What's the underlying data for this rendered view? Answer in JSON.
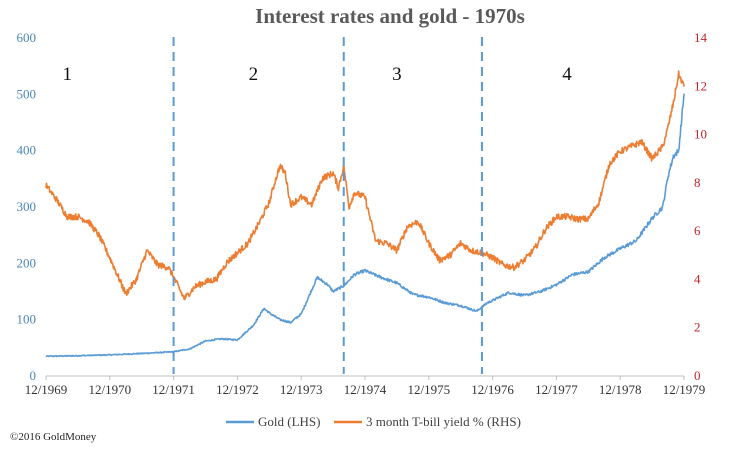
{
  "chart_data": {
    "type": "line",
    "title": "Interest rates and gold - 1970s",
    "x_tick_labels": [
      "12/1969",
      "12/1970",
      "12/1971",
      "12/1972",
      "12/1973",
      "12/1974",
      "12/1975",
      "12/1976",
      "12/1977",
      "12/1978",
      "12/1979"
    ],
    "x_range": [
      "12/1969",
      "12/1979"
    ],
    "y_left": {
      "ticks": [
        "0",
        "100",
        "200",
        "300",
        "400",
        "500",
        "600"
      ],
      "range": [
        0,
        600
      ],
      "color": "#4a86b8"
    },
    "y_right": {
      "ticks": [
        "0",
        "2",
        "4",
        "6",
        "8",
        "10",
        "12",
        "14"
      ],
      "range": [
        0,
        14
      ],
      "color": "#c0242b"
    },
    "grid": false,
    "legend_position": "bottom",
    "series": [
      {
        "name": "Gold (LHS)",
        "axis": "left",
        "color": "#5b9bd5",
        "points": [
          [
            "12/1969",
            35
          ],
          [
            "06/1970",
            36
          ],
          [
            "12/1970",
            37.5
          ],
          [
            "06/1971",
            40
          ],
          [
            "12/1971",
            43
          ],
          [
            "03/1972",
            48
          ],
          [
            "06/1972",
            62
          ],
          [
            "09/1972",
            66
          ],
          [
            "12/1972",
            64
          ],
          [
            "03/1973",
            90
          ],
          [
            "05/1973",
            120
          ],
          [
            "06/1973",
            112
          ],
          [
            "08/1973",
            100
          ],
          [
            "10/1973",
            95
          ],
          [
            "12/1973",
            110
          ],
          [
            "03/1974",
            175
          ],
          [
            "05/1974",
            162
          ],
          [
            "06/1974",
            150
          ],
          [
            "08/1974",
            160
          ],
          [
            "10/1974",
            180
          ],
          [
            "12/1974",
            187
          ],
          [
            "03/1975",
            175
          ],
          [
            "06/1975",
            165
          ],
          [
            "09/1975",
            145
          ],
          [
            "12/1975",
            140
          ],
          [
            "03/1976",
            130
          ],
          [
            "06/1976",
            125
          ],
          [
            "09/1976",
            115
          ],
          [
            "11/1976",
            130
          ],
          [
            "12/1976",
            134
          ],
          [
            "03/1977",
            148
          ],
          [
            "06/1977",
            143
          ],
          [
            "09/1977",
            150
          ],
          [
            "12/1977",
            162
          ],
          [
            "03/1978",
            180
          ],
          [
            "06/1978",
            185
          ],
          [
            "09/1978",
            210
          ],
          [
            "12/1978",
            226
          ],
          [
            "03/1979",
            240
          ],
          [
            "06/1979",
            280
          ],
          [
            "08/1979",
            300
          ],
          [
            "09/1979",
            355
          ],
          [
            "10/1979",
            390
          ],
          [
            "11/1979",
            400
          ],
          [
            "12/1979",
            500
          ]
        ]
      },
      {
        "name": "3 month T-bill yield % (RHS)",
        "axis": "right",
        "color": "#ed7d31",
        "points": [
          [
            "12/1969",
            7.9
          ],
          [
            "02/1970",
            7.3
          ],
          [
            "04/1970",
            6.6
          ],
          [
            "06/1970",
            6.6
          ],
          [
            "08/1970",
            6.4
          ],
          [
            "10/1970",
            5.8
          ],
          [
            "12/1970",
            4.9
          ],
          [
            "01/1971",
            4.4
          ],
          [
            "03/1971",
            3.4
          ],
          [
            "05/1971",
            4.0
          ],
          [
            "07/1971",
            5.2
          ],
          [
            "09/1971",
            4.6
          ],
          [
            "11/1971",
            4.5
          ],
          [
            "12/1971",
            4.1
          ],
          [
            "02/1972",
            3.2
          ],
          [
            "04/1972",
            3.7
          ],
          [
            "06/1972",
            3.9
          ],
          [
            "08/1972",
            4.0
          ],
          [
            "10/1972",
            4.7
          ],
          [
            "12/1972",
            5.1
          ],
          [
            "02/1973",
            5.5
          ],
          [
            "04/1973",
            6.3
          ],
          [
            "06/1973",
            7.2
          ],
          [
            "07/1973",
            8.0
          ],
          [
            "08/1973",
            8.7
          ],
          [
            "09/1973",
            8.4
          ],
          [
            "10/1973",
            7.1
          ],
          [
            "12/1973",
            7.4
          ],
          [
            "02/1974",
            7.1
          ],
          [
            "04/1974",
            8.2
          ],
          [
            "06/1974",
            8.4
          ],
          [
            "07/1974",
            7.8
          ],
          [
            "08/1974",
            8.7
          ],
          [
            "09/1974",
            7.0
          ],
          [
            "10/1974",
            7.6
          ],
          [
            "12/1974",
            7.4
          ],
          [
            "02/1975",
            5.6
          ],
          [
            "04/1975",
            5.5
          ],
          [
            "06/1975",
            5.2
          ],
          [
            "08/1975",
            6.2
          ],
          [
            "10/1975",
            6.4
          ],
          [
            "12/1975",
            5.5
          ],
          [
            "02/1976",
            4.8
          ],
          [
            "04/1976",
            5.0
          ],
          [
            "06/1976",
            5.5
          ],
          [
            "08/1976",
            5.2
          ],
          [
            "10/1976",
            5.1
          ],
          [
            "12/1976",
            4.9
          ],
          [
            "02/1977",
            4.6
          ],
          [
            "04/1977",
            4.5
          ],
          [
            "06/1977",
            4.8
          ],
          [
            "08/1977",
            5.3
          ],
          [
            "10/1977",
            6.1
          ],
          [
            "12/1977",
            6.6
          ],
          [
            "02/1978",
            6.6
          ],
          [
            "04/1978",
            6.5
          ],
          [
            "06/1978",
            6.5
          ],
          [
            "08/1978",
            7.2
          ],
          [
            "10/1978",
            8.8
          ],
          [
            "12/1978",
            9.3
          ],
          [
            "02/1979",
            9.5
          ],
          [
            "04/1979",
            9.7
          ],
          [
            "06/1979",
            9.0
          ],
          [
            "08/1979",
            9.5
          ],
          [
            "09/1979",
            10.3
          ],
          [
            "10/1979",
            11.3
          ],
          [
            "11/1979",
            12.5
          ],
          [
            "12/1979",
            12.0
          ]
        ]
      }
    ],
    "period_markers": {
      "dates": [
        "12/1971",
        "08/1974",
        "10/1976"
      ],
      "color": "#5b9bd5",
      "labels": [
        {
          "text": "1",
          "x": "04/1970"
        },
        {
          "text": "2",
          "x": "03/1973"
        },
        {
          "text": "3",
          "x": "06/1975"
        },
        {
          "text": "4",
          "x": "02/1978"
        }
      ]
    }
  },
  "footer": {
    "copyright": "©2016 GoldMoney"
  }
}
